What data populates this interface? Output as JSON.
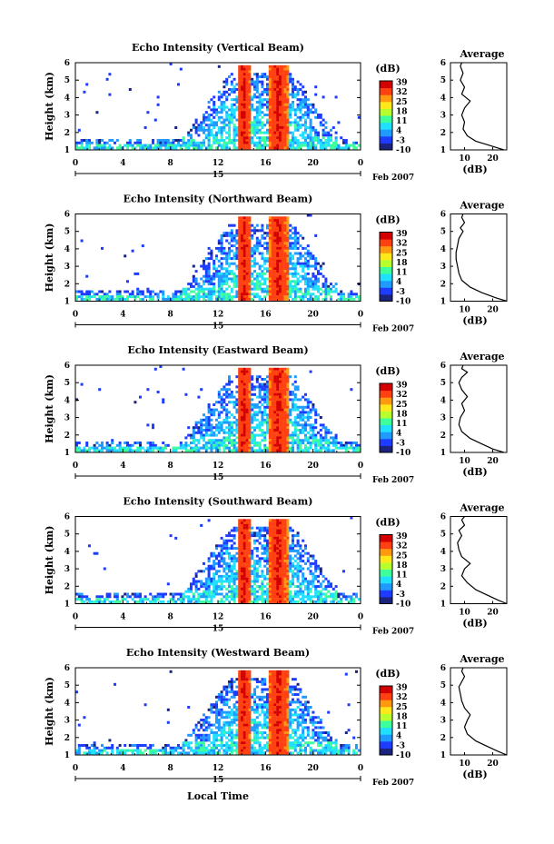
{
  "figure": {
    "date_label": "Feb 2007",
    "xlabel_bottom": "Local Time",
    "day_label": "15"
  },
  "colorbar": {
    "unit_label": "(dB)",
    "ticks": [
      "39",
      "32",
      "25",
      "18",
      "11",
      "4",
      "-3",
      "-10"
    ],
    "range": [
      -10,
      40
    ],
    "colors": [
      "#1a237e",
      "#1e3cff",
      "#1f9bff",
      "#1fe0ff",
      "#3dff9c",
      "#b8ff2e",
      "#ffe81a",
      "#ff9a10",
      "#ff4010",
      "#d40000"
    ]
  },
  "chart_data": [
    {
      "type": "heatmap",
      "title": "Echo Intensity (Vertical Beam)",
      "ylabel": "Height (km)",
      "x_ticks": [
        "0",
        "4",
        "8",
        "12",
        "16",
        "20",
        "0"
      ],
      "y_ticks": [
        "1",
        "2",
        "3",
        "4",
        "5",
        "6"
      ],
      "xlim": [
        0,
        24
      ],
      "ylim": [
        1,
        6
      ],
      "profile": {
        "title": "Average",
        "xlabel": "(dB)",
        "x_ticks": [
          "10",
          "20"
        ],
        "xlim": [
          5,
          25
        ],
        "points": [
          [
            24,
            1.0
          ],
          [
            22,
            1.1
          ],
          [
            18,
            1.3
          ],
          [
            14,
            1.5
          ],
          [
            11,
            1.8
          ],
          [
            9.5,
            2.2
          ],
          [
            10,
            2.6
          ],
          [
            9,
            3.0
          ],
          [
            10,
            3.4
          ],
          [
            12,
            3.8
          ],
          [
            9,
            4.2
          ],
          [
            10,
            4.6
          ],
          [
            8.5,
            5.0
          ],
          [
            9.5,
            5.4
          ],
          [
            8.5,
            5.8
          ],
          [
            9,
            6.0
          ]
        ]
      }
    },
    {
      "type": "heatmap",
      "title": "Echo Intensity (Northward Beam)",
      "ylabel": "Height (km)",
      "x_ticks": [
        "0",
        "4",
        "8",
        "12",
        "16",
        "20",
        "0"
      ],
      "y_ticks": [
        "1",
        "2",
        "3",
        "4",
        "5",
        "6"
      ],
      "xlim": [
        0,
        24
      ],
      "ylim": [
        1,
        6
      ],
      "profile": {
        "title": "Average",
        "xlabel": "(dB)",
        "x_ticks": [
          "10",
          "20"
        ],
        "xlim": [
          5,
          25
        ],
        "points": [
          [
            25,
            1.0
          ],
          [
            21,
            1.2
          ],
          [
            16,
            1.5
          ],
          [
            12,
            1.8
          ],
          [
            9,
            2.2
          ],
          [
            8,
            2.6
          ],
          [
            7.5,
            3.0
          ],
          [
            7,
            3.4
          ],
          [
            7,
            3.8
          ],
          [
            7.5,
            4.2
          ],
          [
            8,
            4.6
          ],
          [
            9.5,
            5.0
          ],
          [
            8.5,
            5.2
          ],
          [
            10,
            5.5
          ],
          [
            9,
            5.8
          ],
          [
            9.5,
            6.0
          ]
        ]
      }
    },
    {
      "type": "heatmap",
      "title": "Echo Intensity (Eastward Beam)",
      "ylabel": "Height (km)",
      "x_ticks": [
        "0",
        "4",
        "8",
        "12",
        "16",
        "20",
        "0"
      ],
      "y_ticks": [
        "1",
        "2",
        "3",
        "4",
        "5",
        "6"
      ],
      "xlim": [
        0,
        24
      ],
      "ylim": [
        1,
        6
      ],
      "profile": {
        "title": "Average",
        "xlabel": "(dB)",
        "x_ticks": [
          "10",
          "20"
        ],
        "xlim": [
          5,
          25
        ],
        "points": [
          [
            24,
            1.0
          ],
          [
            20,
            1.2
          ],
          [
            16,
            1.5
          ],
          [
            12,
            1.8
          ],
          [
            9,
            2.2
          ],
          [
            8,
            2.6
          ],
          [
            8.5,
            3.0
          ],
          [
            10,
            3.4
          ],
          [
            9,
            3.8
          ],
          [
            11,
            4.2
          ],
          [
            9,
            4.6
          ],
          [
            8,
            5.0
          ],
          [
            9,
            5.3
          ],
          [
            11,
            5.6
          ],
          [
            9,
            5.8
          ],
          [
            9.5,
            6.0
          ]
        ]
      }
    },
    {
      "type": "heatmap",
      "title": "Echo Intensity (Southward Beam)",
      "ylabel": "Height (km)",
      "x_ticks": [
        "0",
        "4",
        "8",
        "12",
        "16",
        "20",
        "0"
      ],
      "y_ticks": [
        "1",
        "2",
        "3",
        "4",
        "5",
        "6"
      ],
      "xlim": [
        0,
        24
      ],
      "ylim": [
        1,
        6
      ],
      "profile": {
        "title": "Average",
        "xlabel": "(dB)",
        "x_ticks": [
          "10",
          "20"
        ],
        "xlim": [
          5,
          25
        ],
        "points": [
          [
            25,
            1.0
          ],
          [
            22,
            1.2
          ],
          [
            18,
            1.5
          ],
          [
            14,
            1.8
          ],
          [
            11,
            2.2
          ],
          [
            9,
            2.6
          ],
          [
            10,
            3.0
          ],
          [
            12,
            3.3
          ],
          [
            9,
            3.7
          ],
          [
            8,
            4.1
          ],
          [
            7.5,
            4.5
          ],
          [
            9,
            4.9
          ],
          [
            8,
            5.2
          ],
          [
            10,
            5.5
          ],
          [
            9,
            5.8
          ],
          [
            10,
            6.0
          ]
        ]
      }
    },
    {
      "type": "heatmap",
      "title": "Echo Intensity (Westward Beam)",
      "ylabel": "Height (km)",
      "x_ticks": [
        "0",
        "4",
        "8",
        "12",
        "16",
        "20",
        "0"
      ],
      "y_ticks": [
        "1",
        "2",
        "3",
        "4",
        "5",
        "6"
      ],
      "xlim": [
        0,
        24
      ],
      "ylim": [
        1,
        6
      ],
      "profile": {
        "title": "Average",
        "xlabel": "(dB)",
        "x_ticks": [
          "10",
          "20"
        ],
        "xlim": [
          5,
          25
        ],
        "points": [
          [
            25,
            1.0
          ],
          [
            22,
            1.2
          ],
          [
            18,
            1.5
          ],
          [
            14,
            1.8
          ],
          [
            11,
            2.2
          ],
          [
            10,
            2.6
          ],
          [
            11,
            3.0
          ],
          [
            12,
            3.3
          ],
          [
            10,
            3.7
          ],
          [
            9,
            4.1
          ],
          [
            8.5,
            4.5
          ],
          [
            8,
            4.9
          ],
          [
            9,
            5.2
          ],
          [
            10,
            5.5
          ],
          [
            9,
            5.8
          ],
          [
            9.5,
            6.0
          ]
        ]
      }
    }
  ]
}
